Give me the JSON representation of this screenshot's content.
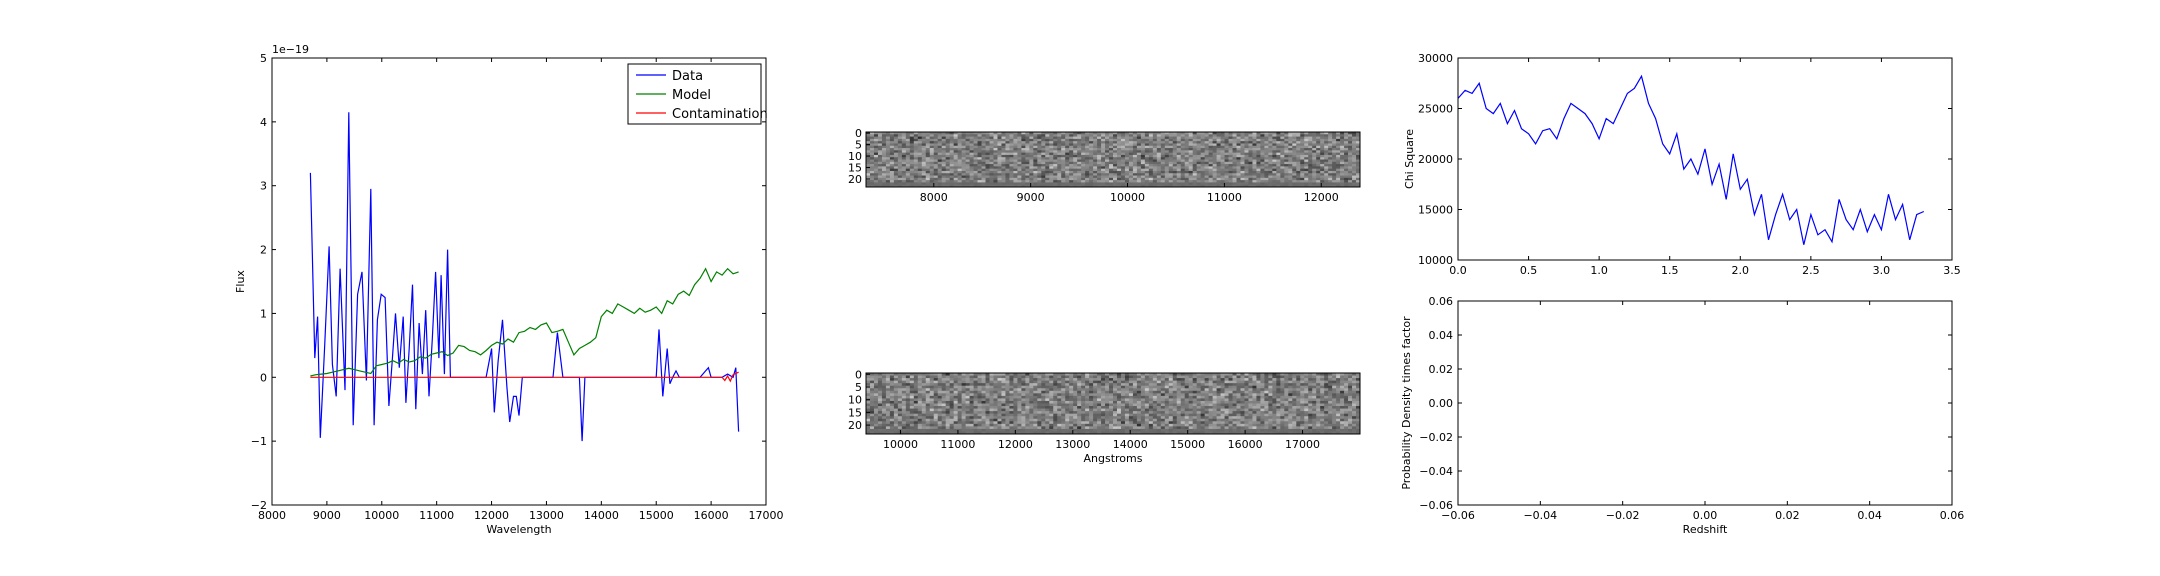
{
  "chart_data": [
    {
      "type": "line",
      "xlabel": "Wavelength",
      "ylabel": "Flux",
      "offset_text": "1e−19",
      "xlim": [
        8000,
        17000
      ],
      "ylim": [
        -2,
        5
      ],
      "xticks": [
        "8000",
        "9000",
        "10000",
        "11000",
        "12000",
        "13000",
        "14000",
        "15000",
        "16000",
        "17000"
      ],
      "yticks": [
        "−2",
        "−1",
        "0",
        "1",
        "2",
        "3",
        "4",
        "5"
      ],
      "legend_position": "upper-right",
      "series": [
        {
          "name": "Data",
          "color": "#0000ff",
          "x": [
            8700,
            8780,
            8830,
            8880,
            8960,
            9040,
            9100,
            9170,
            9240,
            9330,
            9400,
            9480,
            9560,
            9640,
            9720,
            9800,
            9860,
            9920,
            9990,
            10060,
            10130,
            10190,
            10250,
            10320,
            10390,
            10440,
            10500,
            10560,
            10620,
            10680,
            10740,
            10800,
            10860,
            10920,
            10980,
            11040,
            11080,
            11140,
            11200,
            11250,
            11300,
            11360,
            11420,
            11500,
            11600,
            11700,
            11800,
            11900,
            12000,
            12050,
            12120,
            12200,
            12280,
            12330,
            12400,
            12450,
            12500,
            12560,
            12600,
            12650,
            12700,
            12750,
            12850,
            12950,
            13050,
            13120,
            13200,
            13300,
            13400,
            13500,
            13600,
            13650,
            13700,
            13760,
            13800,
            13900,
            14000,
            14100,
            14200,
            14300,
            14400,
            14500,
            14600,
            14700,
            14800,
            14900,
            15000,
            15050,
            15120,
            15200,
            15250,
            15300,
            15360,
            15420,
            15470,
            15520,
            15580,
            15650,
            15700,
            15800,
            15900,
            15950,
            16000,
            16050,
            16100,
            16150,
            16200,
            16300,
            16400,
            16450,
            16500
          ],
          "y": [
            3.2,
            0.3,
            0.95,
            -0.95,
            0.5,
            2.05,
            0.2,
            -0.3,
            1.7,
            -0.2,
            4.15,
            -0.75,
            1.3,
            1.65,
            -0.05,
            2.95,
            -0.75,
            0.9,
            1.3,
            1.25,
            -0.45,
            0.25,
            1.0,
            0.15,
            0.95,
            -0.4,
            0.45,
            1.45,
            -0.5,
            0.85,
            0.05,
            1.05,
            -0.3,
            0.6,
            1.65,
            0.3,
            1.6,
            0.05,
            2.0,
            0.0,
            0.0,
            0.0,
            0.0,
            0.0,
            0.0,
            0.0,
            0.0,
            0.0,
            0.45,
            -0.55,
            0.25,
            0.9,
            -0.15,
            -0.7,
            -0.3,
            -0.3,
            -0.6,
            0.0,
            0.0,
            0.0,
            0.0,
            0.0,
            0.0,
            0.0,
            0.0,
            0.0,
            0.7,
            0.0,
            0.0,
            0.0,
            0.0,
            -1.0,
            0.0,
            0.0,
            0.0,
            0.0,
            0.0,
            0.0,
            0.0,
            0.0,
            0.0,
            0.0,
            0.0,
            0.0,
            0.0,
            0.0,
            0.0,
            0.75,
            -0.3,
            0.45,
            -0.1,
            0.0,
            0.1,
            0.0,
            0.0,
            0.0,
            0.0,
            0.0,
            0.0,
            0.0,
            0.1,
            0.15,
            0.0,
            0.0,
            0.0,
            0.0,
            0.0,
            0.05,
            0.0,
            0.15,
            -0.85
          ]
        },
        {
          "name": "Model",
          "color": "#008000",
          "x": [
            8700,
            8800,
            8900,
            9000,
            9100,
            9200,
            9300,
            9400,
            9500,
            9600,
            9700,
            9800,
            9900,
            10000,
            10100,
            10200,
            10300,
            10400,
            10500,
            10600,
            10700,
            10800,
            10900,
            11000,
            11100,
            11200,
            11300,
            11400,
            11500,
            11600,
            11700,
            11800,
            11900,
            12000,
            12100,
            12200,
            12300,
            12400,
            12500,
            12600,
            12700,
            12800,
            12900,
            13000,
            13100,
            13200,
            13300,
            13400,
            13500,
            13600,
            13700,
            13800,
            13900,
            14000,
            14100,
            14200,
            14300,
            14400,
            14500,
            14600,
            14700,
            14800,
            14900,
            15000,
            15100,
            15200,
            15300,
            15400,
            15500,
            15600,
            15700,
            15800,
            15900,
            16000,
            16100,
            16200,
            16300,
            16400,
            16500
          ],
          "y": [
            0.02,
            0.04,
            0.05,
            0.06,
            0.08,
            0.1,
            0.12,
            0.14,
            0.12,
            0.1,
            0.08,
            0.06,
            0.18,
            0.2,
            0.22,
            0.26,
            0.22,
            0.28,
            0.24,
            0.26,
            0.32,
            0.3,
            0.36,
            0.38,
            0.4,
            0.34,
            0.38,
            0.5,
            0.48,
            0.42,
            0.4,
            0.35,
            0.42,
            0.5,
            0.55,
            0.52,
            0.6,
            0.55,
            0.7,
            0.72,
            0.78,
            0.75,
            0.82,
            0.85,
            0.7,
            0.72,
            0.75,
            0.55,
            0.35,
            0.45,
            0.5,
            0.55,
            0.62,
            0.95,
            1.05,
            1.0,
            1.15,
            1.1,
            1.05,
            1.0,
            1.08,
            1.02,
            1.05,
            1.1,
            1.0,
            1.2,
            1.15,
            1.3,
            1.35,
            1.28,
            1.45,
            1.55,
            1.7,
            1.5,
            1.65,
            1.6,
            1.7,
            1.62,
            1.65
          ]
        },
        {
          "name": "Contamination",
          "color": "#ff0000",
          "x": [
            8700,
            9000,
            10000,
            11000,
            12000,
            13000,
            14000,
            15000,
            16000,
            16200,
            16250,
            16300,
            16350,
            16400,
            16500
          ],
          "y": [
            0,
            0,
            0,
            0,
            0,
            0,
            0,
            0,
            0,
            0,
            -0.05,
            0.02,
            -0.06,
            0.04,
            0.08
          ]
        }
      ]
    },
    {
      "type": "heatmap",
      "xlim": [
        7300,
        12400
      ],
      "xticks": [
        "8000",
        "9000",
        "10000",
        "11000",
        "12000"
      ],
      "yticks": [
        "0",
        "5",
        "10",
        "15",
        "20"
      ],
      "rows": 24
    },
    {
      "type": "heatmap",
      "xlabel": "Angstroms",
      "xlim": [
        9400,
        18000
      ],
      "xticks": [
        "10000",
        "11000",
        "12000",
        "13000",
        "14000",
        "15000",
        "16000",
        "17000"
      ],
      "yticks": [
        "0",
        "5",
        "10",
        "15",
        "20"
      ],
      "rows": 24
    },
    {
      "type": "line",
      "ylabel": "Chi Square",
      "xlim": [
        0.0,
        3.5
      ],
      "ylim": [
        10000,
        30000
      ],
      "xticks": [
        "0.0",
        "0.5",
        "1.0",
        "1.5",
        "2.0",
        "2.5",
        "3.0",
        "3.5"
      ],
      "yticks": [
        "10000",
        "15000",
        "20000",
        "25000",
        "30000"
      ],
      "series": [
        {
          "color": "#0000ff",
          "x": [
            0.0,
            0.05,
            0.1,
            0.15,
            0.2,
            0.25,
            0.3,
            0.35,
            0.4,
            0.45,
            0.5,
            0.55,
            0.6,
            0.65,
            0.7,
            0.75,
            0.8,
            0.85,
            0.9,
            0.95,
            1.0,
            1.05,
            1.1,
            1.15,
            1.2,
            1.25,
            1.3,
            1.35,
            1.4,
            1.45,
            1.5,
            1.55,
            1.6,
            1.65,
            1.7,
            1.75,
            1.8,
            1.85,
            1.9,
            1.95,
            2.0,
            2.05,
            2.1,
            2.15,
            2.2,
            2.25,
            2.3,
            2.35,
            2.4,
            2.45,
            2.5,
            2.55,
            2.6,
            2.65,
            2.7,
            2.75,
            2.8,
            2.85,
            2.9,
            2.95,
            3.0,
            3.05,
            3.1,
            3.15,
            3.2,
            3.25,
            3.3
          ],
          "y": [
            26000,
            26800,
            26500,
            27500,
            25000,
            24500,
            25500,
            23500,
            24800,
            23000,
            22500,
            21500,
            22800,
            23000,
            22000,
            24000,
            25500,
            25000,
            24500,
            23500,
            22000,
            24000,
            23500,
            25000,
            26500,
            27000,
            28200,
            25500,
            24000,
            21500,
            20500,
            22500,
            19000,
            20000,
            18500,
            21000,
            17500,
            19500,
            16000,
            20500,
            17000,
            18000,
            14500,
            16500,
            12000,
            14500,
            16500,
            14000,
            15000,
            11500,
            14500,
            12500,
            13000,
            11800,
            16000,
            14000,
            13000,
            15000,
            12800,
            14500,
            13000,
            16500,
            14000,
            15500,
            12000,
            14500,
            14800
          ]
        }
      ]
    },
    {
      "type": "line",
      "xlabel": "Redshift",
      "ylabel": "Probability Density times factor",
      "xlim": [
        -0.06,
        0.06
      ],
      "ylim": [
        -0.06,
        0.06
      ],
      "xticks": [
        "−0.06",
        "−0.04",
        "−0.02",
        "0.00",
        "0.02",
        "0.04",
        "0.06"
      ],
      "yticks": [
        "−0.06",
        "−0.04",
        "−0.02",
        "0.00",
        "0.02",
        "0.04",
        "0.06"
      ],
      "series": []
    }
  ]
}
